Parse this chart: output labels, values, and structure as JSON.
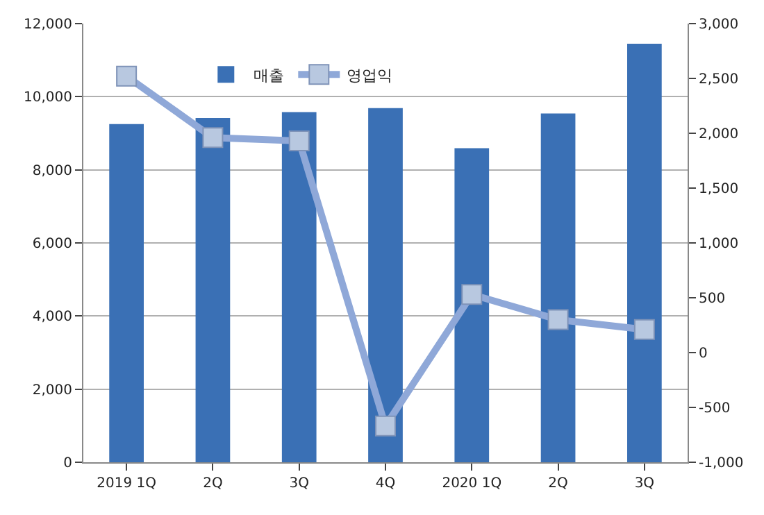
{
  "chart_data": {
    "type": "bar",
    "categories": [
      "2019 1Q",
      "2Q",
      "3Q",
      "4Q",
      "2020 1Q",
      "2Q",
      "3Q"
    ],
    "series": [
      {
        "name": "매출",
        "color": "#3a70b5",
        "values": [
          9250,
          9420,
          9580,
          9690,
          8590,
          9540,
          11450
        ]
      },
      {
        "name": "영업익",
        "type": "line",
        "axis": "y2",
        "color": "#8fa8d8",
        "marker": "square",
        "values": [
          2520,
          1960,
          1930,
          -670,
          530,
          300,
          210
        ]
      }
    ],
    "ylim": [
      0,
      12000
    ],
    "yticks": [
      {
        "value": 0,
        "label": "0"
      },
      {
        "value": 2000,
        "label": "2,000"
      },
      {
        "value": 4000,
        "label": "4,000"
      },
      {
        "value": 6000,
        "label": "6,000"
      },
      {
        "value": 8000,
        "label": "8,000"
      },
      {
        "value": 10000,
        "label": "10,000"
      },
      {
        "value": 12000,
        "label": "12,000"
      }
    ],
    "y2lim": [
      -1000,
      3000
    ],
    "y2ticks": [
      {
        "value": -1000,
        "label": "-1,000"
      },
      {
        "value": -500,
        "label": "-500"
      },
      {
        "value": 0,
        "label": "0"
      },
      {
        "value": 500,
        "label": "500"
      },
      {
        "value": 1000,
        "label": "1,000"
      },
      {
        "value": 1500,
        "label": "1,500"
      },
      {
        "value": 2000,
        "label": "2,000"
      },
      {
        "value": 2500,
        "label": "2,500"
      },
      {
        "value": 3000,
        "label": "3,000"
      }
    ],
    "grid": "y",
    "legend": "top left"
  }
}
